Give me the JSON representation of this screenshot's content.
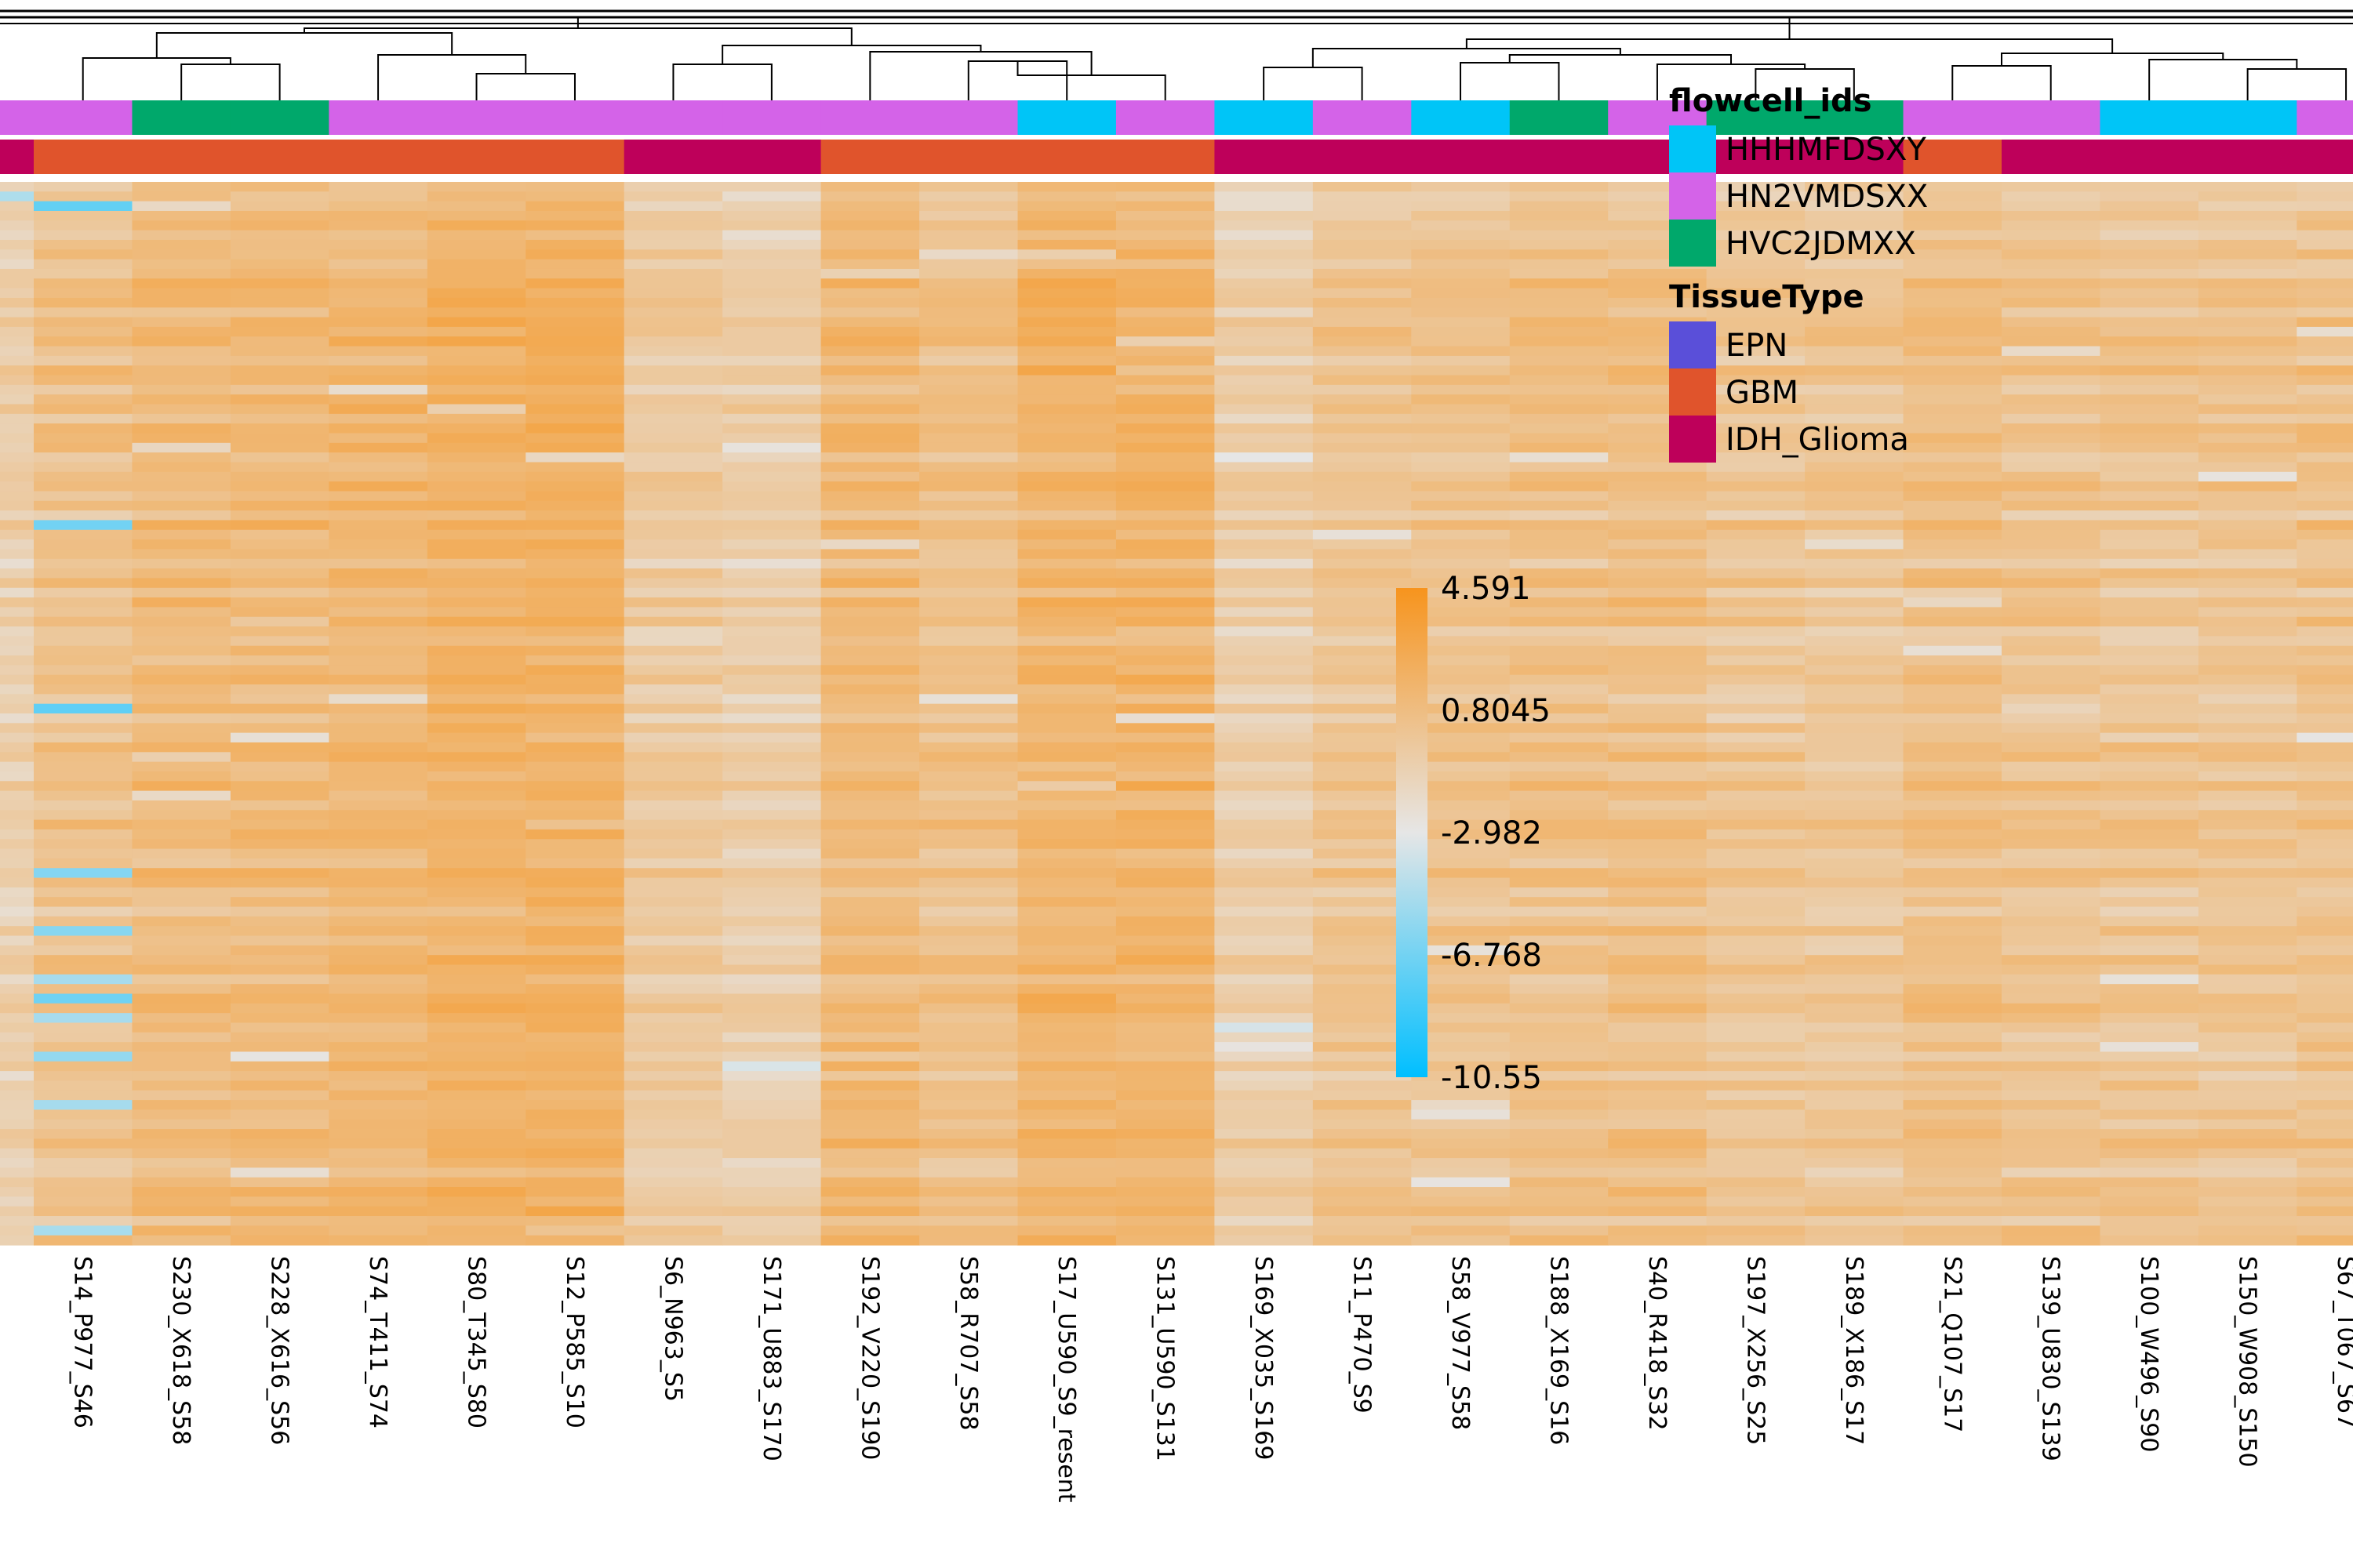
{
  "chart_data": {
    "type": "heatmap",
    "samples": [
      {
        "label": "",
        "flowcell": "HN2VMDSXX",
        "tissue": "IDH_Glioma"
      },
      {
        "label": "S14_P977_S46",
        "flowcell": "HN2VMDSXX",
        "tissue": "GBM"
      },
      {
        "label": "S230_X618_S58",
        "flowcell": "HVC2JDMXX",
        "tissue": "GBM"
      },
      {
        "label": "S228_X616_S56",
        "flowcell": "HVC2JDMXX",
        "tissue": "GBM"
      },
      {
        "label": "S74_T411_S74",
        "flowcell": "HN2VMDSXX",
        "tissue": "GBM"
      },
      {
        "label": "S80_T345_S80",
        "flowcell": "HN2VMDSXX",
        "tissue": "GBM"
      },
      {
        "label": "S12_P585_S10",
        "flowcell": "HN2VMDSXX",
        "tissue": "GBM"
      },
      {
        "label": "S6_N963_S5",
        "flowcell": "HN2VMDSXX",
        "tissue": "IDH_Glioma"
      },
      {
        "label": "S171_U883_S170",
        "flowcell": "HN2VMDSXX",
        "tissue": "IDH_Glioma"
      },
      {
        "label": "S192_V220_S190",
        "flowcell": "HN2VMDSXX",
        "tissue": "GBM"
      },
      {
        "label": "S58_R707_S58",
        "flowcell": "HN2VMDSXX",
        "tissue": "GBM"
      },
      {
        "label": "S17_U590_S9_resent",
        "flowcell": "HHHMFDSXY",
        "tissue": "GBM"
      },
      {
        "label": "S131_U590_S131",
        "flowcell": "HN2VMDSXX",
        "tissue": "GBM"
      },
      {
        "label": "S169_X035_S169",
        "flowcell": "HHHMFDSXY",
        "tissue": "IDH_Glioma"
      },
      {
        "label": "S11_P470_S9",
        "flowcell": "HN2VMDSXX",
        "tissue": "IDH_Glioma"
      },
      {
        "label": "S58_V977_S58",
        "flowcell": "HHHMFDSXY",
        "tissue": "IDH_Glioma"
      },
      {
        "label": "S188_X169_S16",
        "flowcell": "HVC2JDMXX",
        "tissue": "IDH_Glioma"
      },
      {
        "label": "S40_R418_S32",
        "flowcell": "HN2VMDSXX",
        "tissue": "IDH_Glioma"
      },
      {
        "label": "S197_X256_S25",
        "flowcell": "HVC2JDMXX",
        "tissue": "IDH_Glioma"
      },
      {
        "label": "S189_X186_S17",
        "flowcell": "HVC2JDMXX",
        "tissue": "IDH_Glioma"
      },
      {
        "label": "S21_Q107_S17",
        "flowcell": "HN2VMDSXX",
        "tissue": "GBM"
      },
      {
        "label": "S139_U830_S139",
        "flowcell": "HN2VMDSXX",
        "tissue": "IDH_Glioma"
      },
      {
        "label": "S100_W496_S90",
        "flowcell": "HHHMFDSXY",
        "tissue": "IDH_Glioma"
      },
      {
        "label": "S150_W908_S150",
        "flowcell": "HHHMFDSXY",
        "tissue": "IDH_Glioma"
      },
      {
        "label": "S67_T067_S67",
        "flowcell": "HN2VMDSXX",
        "tissue": "IDH_Glioma"
      }
    ],
    "column_means": [
      -0.9,
      0.3,
      0.9,
      1.0,
      1.2,
      1.6,
      1.8,
      -0.4,
      -0.8,
      1.0,
      0.5,
      1.5,
      1.5,
      -0.8,
      0.1,
      0.2,
      0.4,
      0.5,
      0.0,
      -0.1,
      0.5,
      0.2,
      0.1,
      0.1,
      0.3
    ],
    "n_rows": 110,
    "color_scale": {
      "ticks": [
        4.591,
        0.8045,
        -2.982,
        -6.768,
        -10.55
      ],
      "tick_labels": [
        "4.591",
        "0.8045",
        "-2.982",
        "-6.768",
        "-10.55"
      ],
      "min": -10.55,
      "max": 4.591,
      "colors": [
        "#00BFFF",
        "#E6E6E6",
        "#F7941D"
      ]
    },
    "annotation_legends": [
      {
        "title": "flowcell_ids",
        "items": [
          {
            "label": "HHHMFDSXY",
            "color": "#00C5F7"
          },
          {
            "label": "HN2VMDSXX",
            "color": "#D463E8"
          },
          {
            "label": "HVC2JDMXX",
            "color": "#00A86B"
          }
        ]
      },
      {
        "title": "TissueType",
        "items": [
          {
            "label": "EPN",
            "color": "#5A4FD9"
          },
          {
            "label": "GBM",
            "color": "#E0542C"
          },
          {
            "label": "IDH_Glioma",
            "color": "#BE005A"
          }
        ]
      }
    ]
  }
}
